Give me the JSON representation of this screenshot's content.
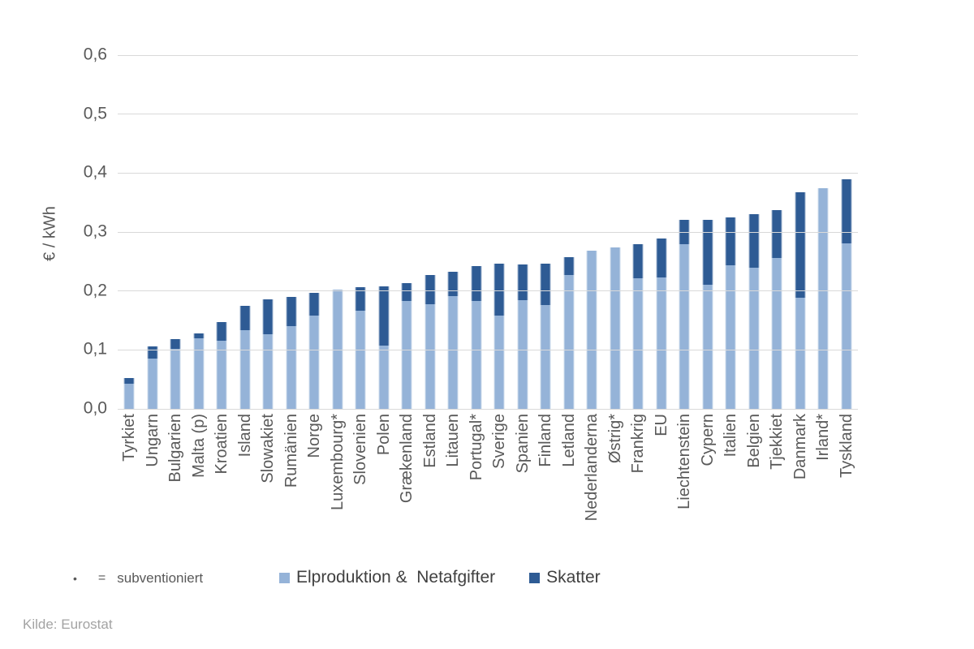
{
  "chart_data": {
    "type": "bar",
    "stacked": true,
    "orientation": "vertical",
    "ylabel": "€ / kWh",
    "ylim": [
      0,
      0.6
    ],
    "ytick_labels": [
      "0,0",
      "0,1",
      "0,2",
      "0,3",
      "0,4",
      "0,5",
      "0,6"
    ],
    "grid": true,
    "legend_position": "bottom",
    "categories": [
      "Tyrkiet",
      "Ungarn",
      "Bulgarien",
      "Malta (p)",
      "Kroatien",
      "Island",
      "Slowakiet",
      "Rumänien",
      "Norge",
      "Luxembourg*",
      "Slovenien",
      "Polen",
      "Grækenland",
      "Estland",
      "Litauen",
      "Portugal*",
      "Sverige",
      "Spanien",
      "Finland",
      "Letland",
      "Nederlanderna",
      "Østrig*",
      "Frankrig",
      "EU",
      "Liechtenstein",
      "Cypern",
      "Italien",
      "Belgien",
      "Tjekkiet",
      "Danmark",
      "Irland*",
      "Tyskland"
    ],
    "series": [
      {
        "name": "Elproduktion &  Netafgifter",
        "color": "#95b3d8",
        "values": [
          0.043,
          0.086,
          0.102,
          0.12,
          0.116,
          0.134,
          0.127,
          0.14,
          0.158,
          0.203,
          0.166,
          0.107,
          0.183,
          0.177,
          0.191,
          0.183,
          0.158,
          0.184,
          0.176,
          0.227,
          0.269,
          0.274,
          0.221,
          0.223,
          0.28,
          0.21,
          0.244,
          0.24,
          0.256,
          0.189,
          0.374,
          0.281
        ]
      },
      {
        "name": "Skatter",
        "color": "#2e5b94",
        "values": [
          0.01,
          0.02,
          0.016,
          0.008,
          0.031,
          0.041,
          0.059,
          0.05,
          0.039,
          0.0,
          0.041,
          0.101,
          0.03,
          0.05,
          0.041,
          0.059,
          0.088,
          0.061,
          0.071,
          0.031,
          0.0,
          0.0,
          0.058,
          0.066,
          0.04,
          0.111,
          0.081,
          0.09,
          0.081,
          0.179,
          0.0,
          0.109
        ]
      }
    ]
  },
  "footnote": {
    "bullet": "•",
    "equals": "=",
    "label": "subventioniert"
  },
  "source": "Kilde: Eurostat",
  "colors": {
    "gridline": "#d9d9d9",
    "axis_text": "#595959",
    "legend_text": "#404040",
    "source_text": "#a3a3a3"
  }
}
